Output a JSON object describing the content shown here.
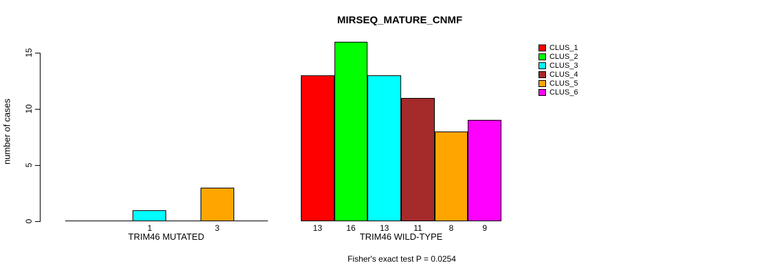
{
  "chart_data": {
    "type": "bar",
    "title": "MIRSEQ_MATURE_CNMF",
    "ylabel": "number of cases",
    "ylim": [
      0,
      15
    ],
    "yticks": [
      0,
      5,
      10,
      15
    ],
    "grid": false,
    "legend_position": "right",
    "categories": [
      "CLUS_1",
      "CLUS_2",
      "CLUS_3",
      "CLUS_4",
      "CLUS_5",
      "CLUS_6"
    ],
    "colors": [
      "#FF0000",
      "#00FF00",
      "#00FFFF",
      "#A52A2A",
      "#FFA500",
      "#FF00FF"
    ],
    "groups": [
      {
        "label": "TRIM46 MUTATED",
        "values": [
          0,
          0,
          1,
          0,
          3,
          0
        ]
      },
      {
        "label": "TRIM46 WILD-TYPE",
        "values": [
          13,
          16,
          13,
          11,
          8,
          9
        ]
      }
    ],
    "annotation": "Fisher's exact test P = 0.0254"
  }
}
